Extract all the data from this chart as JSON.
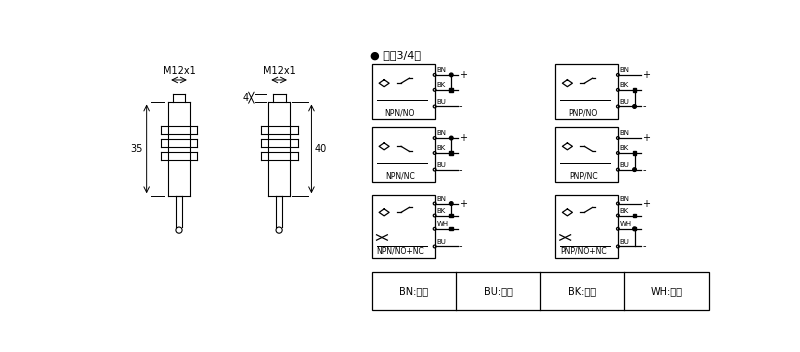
{
  "dc_label": "● 直涁3/4线",
  "left_sensor_label": "M12x1",
  "right_sensor_label": "M12x1",
  "dim_35": "35",
  "dim_40": "40",
  "dim_4": "4",
  "color_labels": [
    {
      "code": "BN",
      "name": "棕色"
    },
    {
      "code": "BU",
      "name": "兰色"
    },
    {
      "code": "BK",
      "name": "黑色"
    },
    {
      "code": "WH",
      "name": "白色"
    }
  ],
  "bg_color": "#ffffff",
  "line_color": "#000000"
}
